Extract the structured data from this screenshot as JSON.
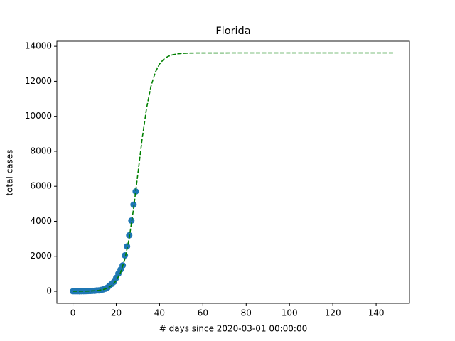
{
  "chart_data": {
    "type": "scatter",
    "title": "Florida",
    "xlabel": "# days since 2020-03-01 00:00:00",
    "ylabel": "total cases",
    "xlim": [
      -7.4,
      155.4
    ],
    "ylim": [
      -690,
      14290
    ],
    "xticks": [
      0,
      20,
      40,
      60,
      80,
      100,
      120,
      140
    ],
    "yticks": [
      0,
      2000,
      4000,
      6000,
      8000,
      10000,
      12000,
      14000
    ],
    "series": [
      {
        "color": "#1f77b4",
        "marker": "circle",
        "x": [
          0,
          1,
          2,
          3,
          4,
          5,
          6,
          7,
          8,
          9,
          10,
          11,
          12,
          13,
          14,
          15,
          16,
          17,
          18,
          19,
          20,
          21,
          22,
          23,
          24,
          25,
          26,
          27,
          28,
          29
        ],
        "values": [
          0,
          0,
          2,
          2,
          3,
          7,
          9,
          14,
          18,
          26,
          30,
          47,
          50,
          75,
          108,
          146,
          216,
          330,
          424,
          546,
          764,
          1006,
          1238,
          1478,
          2048,
          2563,
          3198,
          4038,
          4950,
          5704
        ]
      },
      {
        "color": "#008000",
        "linestyle": "dashed",
        "x": [
          0,
          2,
          4,
          6,
          8,
          10,
          12,
          14,
          16,
          18,
          20,
          22,
          24,
          26,
          28,
          30,
          32,
          34,
          36,
          38,
          40,
          42,
          44,
          46,
          48,
          50,
          52,
          54,
          56,
          58,
          60,
          80,
          100,
          120,
          140,
          148
        ],
        "values": [
          1,
          3,
          5,
          9,
          16,
          30,
          55,
          100,
          183,
          333,
          600,
          1065,
          1839,
          3040,
          4711,
          6719,
          8742,
          10452,
          11693,
          12501,
          12988,
          13270,
          13427,
          13515,
          13562,
          13589,
          13603,
          13611,
          13615,
          13618,
          13619,
          13620,
          13620,
          13620,
          13620,
          13620
        ]
      }
    ]
  }
}
